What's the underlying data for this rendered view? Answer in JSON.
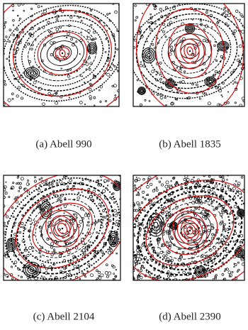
{
  "panels": [
    {
      "caption": "(a) Abell 990"
    },
    {
      "caption": "(b) Abell 1835"
    },
    {
      "caption": "(c) Abell 2104"
    },
    {
      "caption": "(d) Abell 2390"
    }
  ]
}
